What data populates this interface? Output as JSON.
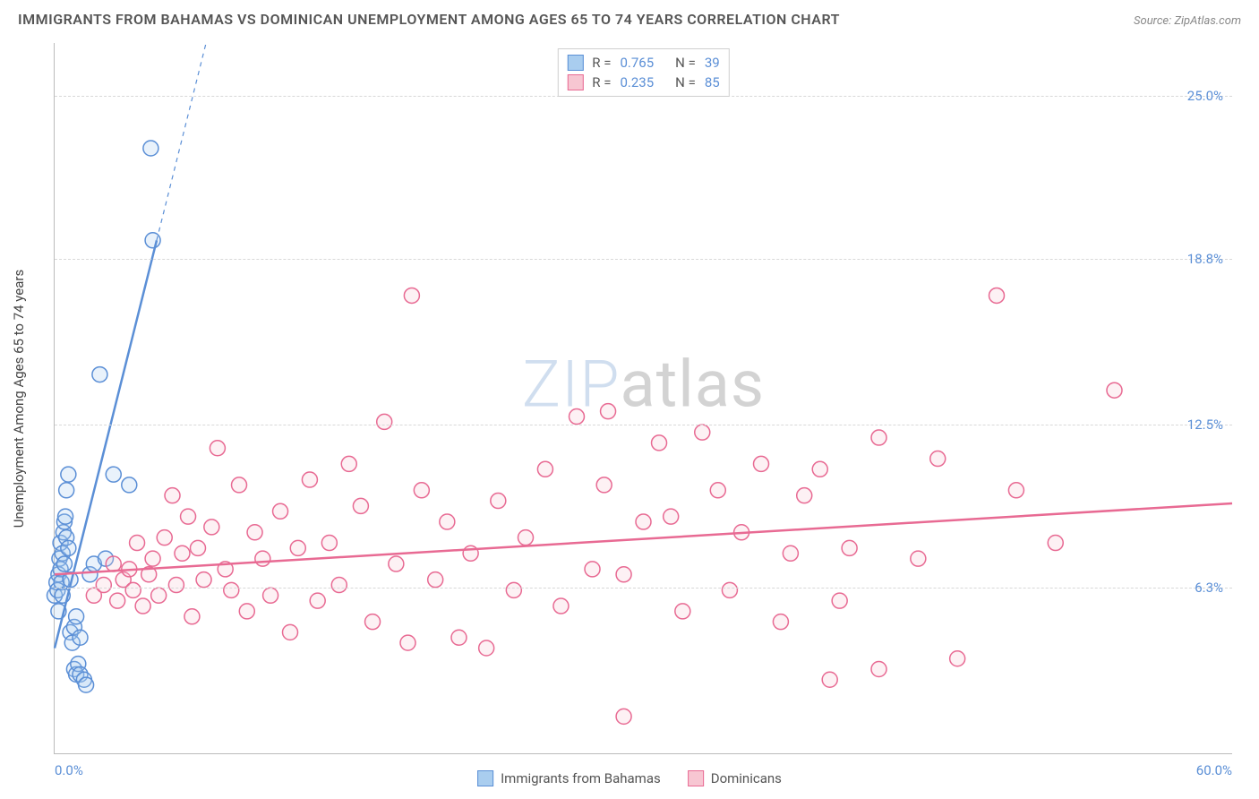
{
  "title": "IMMIGRANTS FROM BAHAMAS VS DOMINICAN UNEMPLOYMENT AMONG AGES 65 TO 74 YEARS CORRELATION CHART",
  "source_label": "Source:",
  "source_name": "ZipAtlas.com",
  "watermark": {
    "part1": "ZIP",
    "part2": "atlas"
  },
  "chart": {
    "type": "scatter",
    "background_color": "#ffffff",
    "grid_color": "#d8d8d8",
    "axis_color": "#bbbbbb",
    "tick_label_color": "#5b8fd6",
    "text_color": "#555555",
    "xlim": [
      0,
      60
    ],
    "ylim": [
      0,
      27
    ],
    "x_start_label": "0.0%",
    "x_end_label": "60.0%",
    "y_ticks": [
      {
        "value": 6.3,
        "label": "6.3%"
      },
      {
        "value": 12.5,
        "label": "12.5%"
      },
      {
        "value": 18.8,
        "label": "18.8%"
      },
      {
        "value": 25.0,
        "label": "25.0%"
      }
    ],
    "y_axis_label": "Unemployment Among Ages 65 to 74 years",
    "marker_radius": 8.5,
    "marker_stroke_width": 1.5,
    "marker_fill_opacity": 0.25,
    "trend_line_width": 2.5,
    "legend_top": [
      {
        "swatch_fill": "#a9cdef",
        "swatch_stroke": "#5b8fd6",
        "r_label": "R =",
        "r_value": "0.765",
        "n_label": "N =",
        "n_value": "39"
      },
      {
        "swatch_fill": "#f7c6d2",
        "swatch_stroke": "#e86a93",
        "r_label": "R =",
        "r_value": "0.235",
        "n_label": "N =",
        "n_value": "85"
      }
    ],
    "legend_bottom": [
      {
        "swatch_fill": "#a9cdef",
        "swatch_stroke": "#5b8fd6",
        "label": "Immigrants from Bahamas"
      },
      {
        "swatch_fill": "#f7c6d2",
        "swatch_stroke": "#e86a93",
        "label": "Dominicans"
      }
    ],
    "series": [
      {
        "name": "Immigrants from Bahamas",
        "color_stroke": "#5b8fd6",
        "color_fill": "#a9cdef",
        "trend": {
          "x1": 0,
          "y1": 4.0,
          "x2": 5.2,
          "y2": 19.5,
          "extend_dashed_to_y": 27
        },
        "points": [
          [
            0.0,
            6.0
          ],
          [
            0.1,
            6.5
          ],
          [
            0.15,
            6.2
          ],
          [
            0.2,
            6.8
          ],
          [
            0.2,
            5.4
          ],
          [
            0.25,
            7.4
          ],
          [
            0.3,
            7.0
          ],
          [
            0.3,
            8.0
          ],
          [
            0.35,
            6.5
          ],
          [
            0.4,
            7.6
          ],
          [
            0.4,
            6.0
          ],
          [
            0.45,
            8.4
          ],
          [
            0.5,
            8.8
          ],
          [
            0.5,
            7.2
          ],
          [
            0.55,
            9.0
          ],
          [
            0.6,
            10.0
          ],
          [
            0.6,
            8.2
          ],
          [
            0.7,
            7.8
          ],
          [
            0.7,
            10.6
          ],
          [
            0.8,
            6.6
          ],
          [
            0.8,
            4.6
          ],
          [
            0.9,
            4.2
          ],
          [
            1.0,
            3.2
          ],
          [
            1.0,
            4.8
          ],
          [
            1.1,
            3.0
          ],
          [
            1.1,
            5.2
          ],
          [
            1.2,
            3.4
          ],
          [
            1.3,
            3.0
          ],
          [
            1.3,
            4.4
          ],
          [
            1.5,
            2.8
          ],
          [
            1.6,
            2.6
          ],
          [
            1.8,
            6.8
          ],
          [
            2.0,
            7.2
          ],
          [
            2.6,
            7.4
          ],
          [
            3.0,
            10.6
          ],
          [
            2.3,
            14.4
          ],
          [
            3.8,
            10.2
          ],
          [
            4.9,
            23.0
          ],
          [
            5.0,
            19.5
          ]
        ]
      },
      {
        "name": "Dominicans",
        "color_stroke": "#e86a93",
        "color_fill": "#f7c6d2",
        "trend": {
          "x1": 0,
          "y1": 6.8,
          "x2": 60,
          "y2": 9.5
        },
        "points": [
          [
            2.0,
            6.0
          ],
          [
            2.5,
            6.4
          ],
          [
            3.0,
            7.2
          ],
          [
            3.2,
            5.8
          ],
          [
            3.5,
            6.6
          ],
          [
            3.8,
            7.0
          ],
          [
            4.0,
            6.2
          ],
          [
            4.2,
            8.0
          ],
          [
            4.5,
            5.6
          ],
          [
            4.8,
            6.8
          ],
          [
            5.0,
            7.4
          ],
          [
            5.3,
            6.0
          ],
          [
            5.6,
            8.2
          ],
          [
            6.0,
            9.8
          ],
          [
            6.2,
            6.4
          ],
          [
            6.5,
            7.6
          ],
          [
            6.8,
            9.0
          ],
          [
            7.0,
            5.2
          ],
          [
            7.3,
            7.8
          ],
          [
            7.6,
            6.6
          ],
          [
            8.0,
            8.6
          ],
          [
            8.3,
            11.6
          ],
          [
            8.7,
            7.0
          ],
          [
            9.0,
            6.2
          ],
          [
            9.4,
            10.2
          ],
          [
            9.8,
            5.4
          ],
          [
            10.2,
            8.4
          ],
          [
            10.6,
            7.4
          ],
          [
            11.0,
            6.0
          ],
          [
            11.5,
            9.2
          ],
          [
            12.0,
            4.6
          ],
          [
            12.4,
            7.8
          ],
          [
            13.0,
            10.4
          ],
          [
            13.4,
            5.8
          ],
          [
            14.0,
            8.0
          ],
          [
            14.5,
            6.4
          ],
          [
            15.0,
            11.0
          ],
          [
            15.6,
            9.4
          ],
          [
            16.2,
            5.0
          ],
          [
            16.8,
            12.6
          ],
          [
            17.4,
            7.2
          ],
          [
            18.0,
            4.2
          ],
          [
            18.2,
            17.4
          ],
          [
            18.7,
            10.0
          ],
          [
            19.4,
            6.6
          ],
          [
            20.0,
            8.8
          ],
          [
            20.6,
            4.4
          ],
          [
            21.2,
            7.6
          ],
          [
            22.0,
            4.0
          ],
          [
            22.6,
            9.6
          ],
          [
            23.4,
            6.2
          ],
          [
            24.0,
            8.2
          ],
          [
            25.0,
            10.8
          ],
          [
            25.8,
            5.6
          ],
          [
            26.6,
            12.8
          ],
          [
            27.4,
            7.0
          ],
          [
            28.0,
            10.2
          ],
          [
            28.2,
            13.0
          ],
          [
            29.0,
            6.8
          ],
          [
            30.0,
            8.8
          ],
          [
            30.8,
            11.8
          ],
          [
            31.4,
            9.0
          ],
          [
            32.0,
            5.4
          ],
          [
            33.0,
            12.2
          ],
          [
            33.8,
            10.0
          ],
          [
            34.4,
            6.2
          ],
          [
            35.0,
            8.4
          ],
          [
            36.0,
            11.0
          ],
          [
            37.0,
            5.0
          ],
          [
            37.5,
            7.6
          ],
          [
            38.2,
            9.8
          ],
          [
            39.0,
            10.8
          ],
          [
            39.5,
            2.8
          ],
          [
            40.0,
            5.8
          ],
          [
            40.5,
            7.8
          ],
          [
            42.0,
            12.0
          ],
          [
            42.0,
            3.2
          ],
          [
            44.0,
            7.4
          ],
          [
            45.0,
            11.2
          ],
          [
            46.0,
            3.6
          ],
          [
            48.0,
            17.4
          ],
          [
            49.0,
            10.0
          ],
          [
            51.0,
            8.0
          ],
          [
            54.0,
            13.8
          ],
          [
            29.0,
            1.4
          ]
        ]
      }
    ]
  }
}
